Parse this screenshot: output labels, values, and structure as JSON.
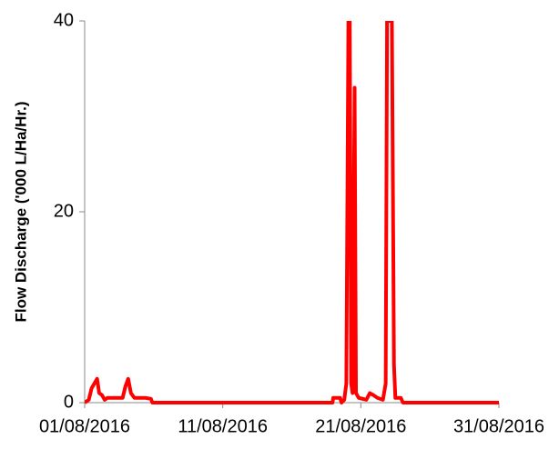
{
  "chart_data": {
    "type": "line",
    "y_label": "Flow Discharge ('000 L/Ha/Hr.)",
    "x": [
      0,
      0.3,
      0.5,
      0.7,
      0.9,
      1.05,
      1.25,
      1.45,
      1.65,
      2.75,
      2.95,
      3.15,
      3.35,
      3.6,
      4.3,
      4.4,
      4.8,
      4.9,
      17.95,
      18.0,
      18.5,
      18.6,
      18.8,
      18.95,
      19.1,
      19.2,
      19.3,
      19.4,
      19.55,
      19.65,
      19.85,
      20.4,
      20.65,
      20.9,
      21.2,
      21.6,
      21.8,
      21.9,
      22.25,
      22.4,
      22.5,
      22.9,
      23.05,
      30
    ],
    "series": [
      {
        "name": "Flow",
        "color": "#ff0000",
        "values": [
          0,
          0.3,
          1.5,
          2,
          2.5,
          1,
          0.8,
          0.3,
          0.5,
          0.5,
          1.7,
          2.5,
          1,
          0.5,
          0.5,
          0.5,
          0.4,
          0,
          0,
          0.5,
          0.5,
          0,
          0.3,
          2,
          40,
          40,
          2,
          1,
          33,
          1,
          0.5,
          0.3,
          1,
          0.8,
          0.5,
          0.3,
          2,
          40,
          40,
          4,
          0.5,
          0.5,
          0,
          0
        ]
      }
    ],
    "xlim": [
      0,
      30
    ],
    "xticks": [
      {
        "value": 0,
        "label": "01/08/2016"
      },
      {
        "value": 10,
        "label": "11/08/2016"
      },
      {
        "value": 20,
        "label": "21/08/2016"
      },
      {
        "value": 30,
        "label": "31/08/2016"
      }
    ],
    "ylim": [
      0,
      40
    ],
    "yticks": [
      0,
      20,
      40
    ],
    "grid": false
  }
}
